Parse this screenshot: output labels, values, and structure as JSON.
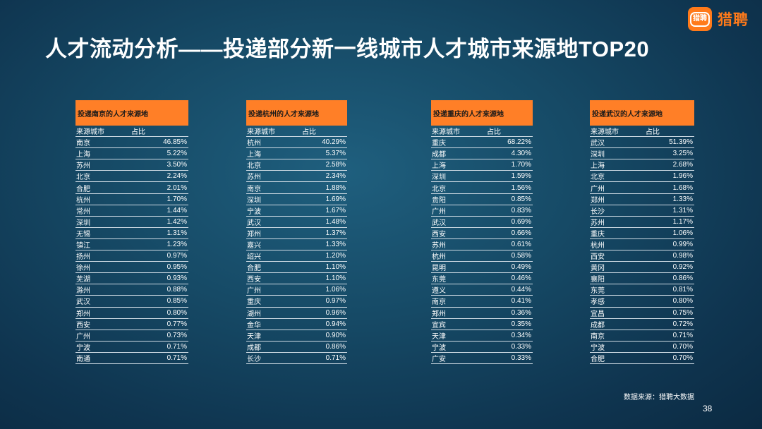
{
  "title": "人才流动分析——投递部分新一线城市人才城市来源地TOP20",
  "logo": {
    "mark": "猎聘",
    "text": "猎聘"
  },
  "column_headers": {
    "city": "来源城市",
    "share": "占比"
  },
  "tables": [
    {
      "title": "投递南京的人才来源地",
      "rows": [
        [
          "南京",
          "46.85%"
        ],
        [
          "上海",
          "5.22%"
        ],
        [
          "苏州",
          "3.50%"
        ],
        [
          "北京",
          "2.24%"
        ],
        [
          "合肥",
          "2.01%"
        ],
        [
          "杭州",
          "1.70%"
        ],
        [
          "常州",
          "1.44%"
        ],
        [
          "深圳",
          "1.42%"
        ],
        [
          "无锡",
          "1.31%"
        ],
        [
          "镇江",
          "1.23%"
        ],
        [
          "扬州",
          "0.97%"
        ],
        [
          "徐州",
          "0.95%"
        ],
        [
          "芜湖",
          "0.93%"
        ],
        [
          "滁州",
          "0.88%"
        ],
        [
          "武汉",
          "0.85%"
        ],
        [
          "郑州",
          "0.80%"
        ],
        [
          "西安",
          "0.77%"
        ],
        [
          "广州",
          "0.73%"
        ],
        [
          "宁波",
          "0.71%"
        ],
        [
          "南通",
          "0.71%"
        ]
      ]
    },
    {
      "title": "投递杭州的人才来源地",
      "rows": [
        [
          "杭州",
          "40.29%"
        ],
        [
          "上海",
          "5.37%"
        ],
        [
          "北京",
          "2.58%"
        ],
        [
          "苏州",
          "2.34%"
        ],
        [
          "南京",
          "1.88%"
        ],
        [
          "深圳",
          "1.69%"
        ],
        [
          "宁波",
          "1.67%"
        ],
        [
          "武汉",
          "1.48%"
        ],
        [
          "郑州",
          "1.37%"
        ],
        [
          "嘉兴",
          "1.33%"
        ],
        [
          "绍兴",
          "1.20%"
        ],
        [
          "合肥",
          "1.10%"
        ],
        [
          "西安",
          "1.10%"
        ],
        [
          "广州",
          "1.06%"
        ],
        [
          "重庆",
          "0.97%"
        ],
        [
          "湖州",
          "0.96%"
        ],
        [
          "金华",
          "0.94%"
        ],
        [
          "天津",
          "0.90%"
        ],
        [
          "成都",
          "0.86%"
        ],
        [
          "长沙",
          "0.71%"
        ]
      ]
    },
    {
      "title": "投递重庆的人才来源地",
      "rows": [
        [
          "重庆",
          "68.22%"
        ],
        [
          "成都",
          "4.30%"
        ],
        [
          "上海",
          "1.70%"
        ],
        [
          "深圳",
          "1.59%"
        ],
        [
          "北京",
          "1.56%"
        ],
        [
          "贵阳",
          "0.85%"
        ],
        [
          "广州",
          "0.83%"
        ],
        [
          "武汉",
          "0.69%"
        ],
        [
          "西安",
          "0.66%"
        ],
        [
          "苏州",
          "0.61%"
        ],
        [
          "杭州",
          "0.58%"
        ],
        [
          "昆明",
          "0.49%"
        ],
        [
          "东莞",
          "0.46%"
        ],
        [
          "遵义",
          "0.44%"
        ],
        [
          "南京",
          "0.41%"
        ],
        [
          "郑州",
          "0.36%"
        ],
        [
          "宜宾",
          "0.35%"
        ],
        [
          "天津",
          "0.34%"
        ],
        [
          "宁波",
          "0.33%"
        ],
        [
          "广安",
          "0.33%"
        ]
      ]
    },
    {
      "title": "投递武汉的人才来源地",
      "rows": [
        [
          "武汉",
          "51.39%"
        ],
        [
          "深圳",
          "3.25%"
        ],
        [
          "上海",
          "2.68%"
        ],
        [
          "北京",
          "1.96%"
        ],
        [
          "广州",
          "1.68%"
        ],
        [
          "郑州",
          "1.33%"
        ],
        [
          "长沙",
          "1.31%"
        ],
        [
          "苏州",
          "1.17%"
        ],
        [
          "重庆",
          "1.06%"
        ],
        [
          "杭州",
          "0.99%"
        ],
        [
          "西安",
          "0.98%"
        ],
        [
          "黄冈",
          "0.92%"
        ],
        [
          "襄阳",
          "0.86%"
        ],
        [
          "东莞",
          "0.81%"
        ],
        [
          "孝感",
          "0.80%"
        ],
        [
          "宜昌",
          "0.75%"
        ],
        [
          "成都",
          "0.72%"
        ],
        [
          "南京",
          "0.71%"
        ],
        [
          "宁波",
          "0.70%"
        ],
        [
          "合肥",
          "0.70%"
        ]
      ]
    }
  ],
  "source_note": "数据来源：猎聘大数据",
  "page_number": "38"
}
